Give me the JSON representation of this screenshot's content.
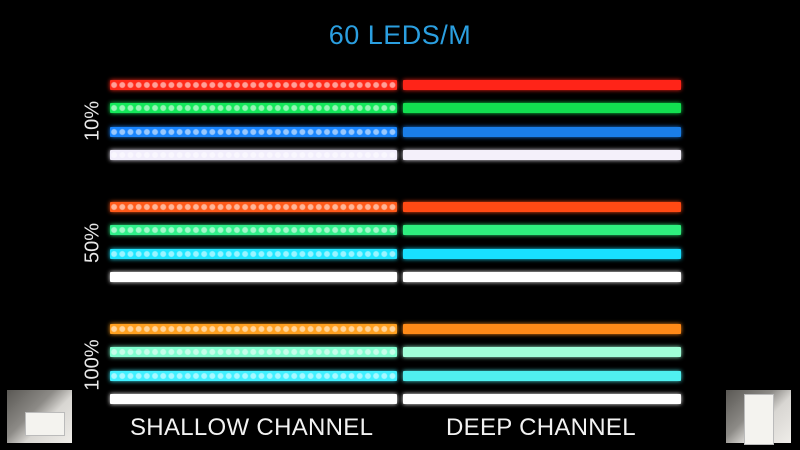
{
  "title": "60 LEDS/M",
  "columns": {
    "left": "SHALLOW CHANNEL",
    "right": "DEEP CHANNEL"
  },
  "groups": [
    {
      "label": "10%",
      "strips": [
        {
          "left": "#ff2a1a",
          "right": "#ff2418"
        },
        {
          "left": "#14e85a",
          "right": "#12e050"
        },
        {
          "left": "#1a86ff",
          "right": "#1a7ee8"
        },
        {
          "left": "#f2eefc",
          "right": "#f4f0fa"
        }
      ]
    },
    {
      "label": "50%",
      "strips": [
        {
          "left": "#ff5a1a",
          "right": "#ff4a14"
        },
        {
          "left": "#30f08a",
          "right": "#2ef07e"
        },
        {
          "left": "#20e6ff",
          "right": "#18e0ff"
        },
        {
          "left": "#ffffff",
          "right": "#ffffff"
        }
      ]
    },
    {
      "label": "100%",
      "strips": [
        {
          "left": "#ffa020",
          "right": "#ff8a18"
        },
        {
          "left": "#80ffd0",
          "right": "#a0ffd8"
        },
        {
          "left": "#40f0ff",
          "right": "#50f0f0"
        },
        {
          "left": "#ffffff",
          "right": "#ffffff"
        }
      ]
    }
  ],
  "thumbnails": {
    "left": "shallow-channel-photo",
    "right": "deep-channel-photo"
  }
}
